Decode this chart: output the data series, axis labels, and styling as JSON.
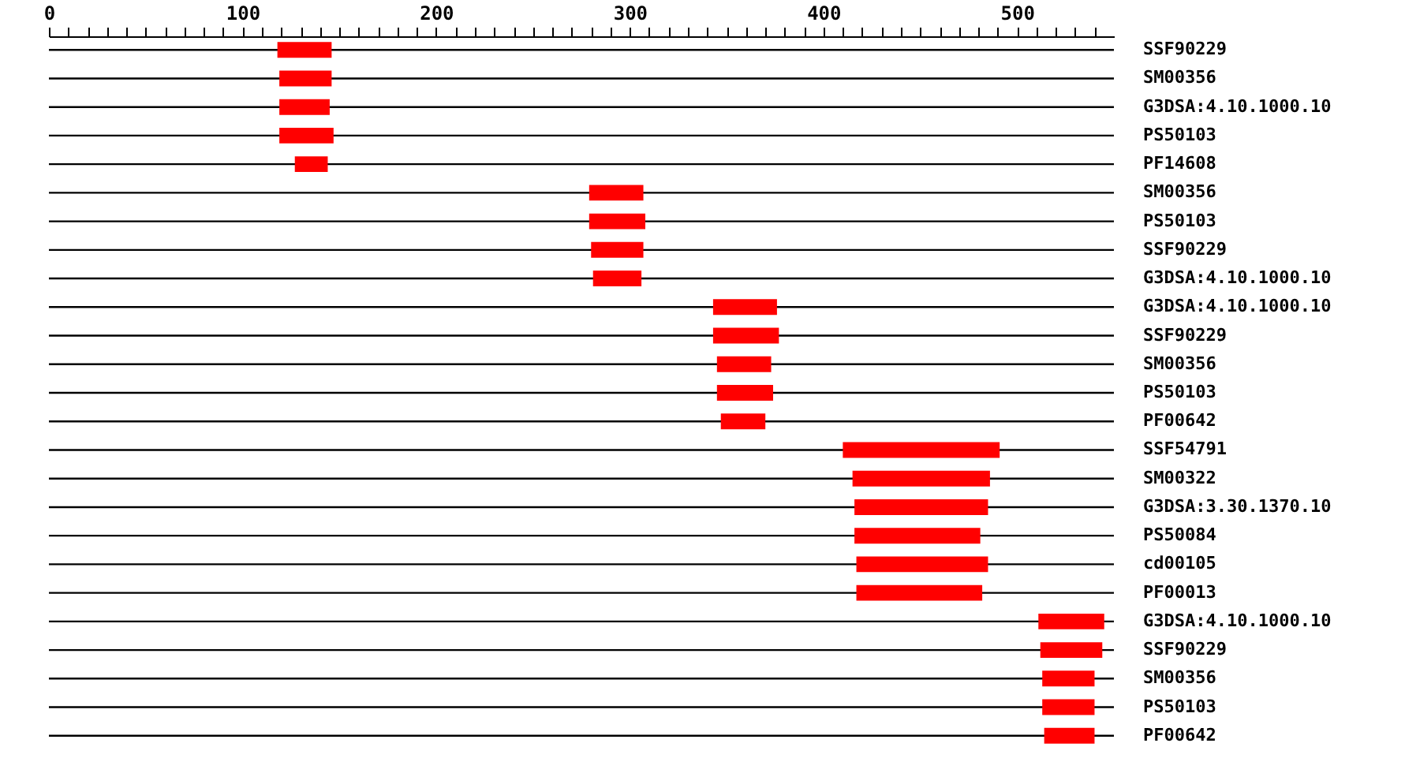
{
  "chart_data": {
    "type": "bar",
    "orientation": "horizontal",
    "categories": [
      "SSF90229",
      "SM00356",
      "G3DSA:4.10.1000.10",
      "PS50103",
      "PF14608",
      "SM00356",
      "PS50103",
      "SSF90229",
      "G3DSA:4.10.1000.10",
      "G3DSA:4.10.1000.10",
      "SSF90229",
      "SM00356",
      "PS50103",
      "PF00642",
      "SSF54791",
      "SM00322",
      "G3DSA:3.30.1370.10",
      "PS50084",
      "cd00105",
      "PF00013",
      "G3DSA:4.10.1000.10",
      "SSF90229",
      "SM00356",
      "PS50103",
      "PF00642"
    ],
    "base": [
      118,
      119,
      119,
      119,
      127,
      279,
      279,
      280,
      281,
      343,
      343,
      345,
      345,
      347,
      410,
      415,
      416,
      416,
      417,
      417,
      511,
      512,
      513,
      513,
      514
    ],
    "values": [
      28,
      27,
      26,
      28,
      17,
      28,
      29,
      27,
      25,
      33,
      34,
      28,
      29,
      23,
      81,
      71,
      69,
      65,
      68,
      65,
      34,
      32,
      27,
      27,
      26
    ],
    "color": "#ff0000",
    "xlim": [
      0,
      550
    ],
    "xticks": [
      0,
      {
        "value": 10,
        "label": null
      },
      {
        "value": 20,
        "label": null
      },
      {
        "value": 30,
        "label": null
      },
      {
        "value": 40,
        "label": null
      },
      {
        "value": 50,
        "label": null
      },
      {
        "value": 60,
        "label": null
      },
      {
        "value": 70,
        "label": null
      },
      {
        "value": 80,
        "label": null
      },
      {
        "value": 90,
        "label": null
      },
      100,
      {
        "value": 110,
        "label": null
      },
      {
        "value": 120,
        "label": null
      },
      {
        "value": 130,
        "label": null
      },
      {
        "value": 140,
        "label": null
      },
      {
        "value": 150,
        "label": null
      },
      {
        "value": 160,
        "label": null
      },
      {
        "value": 170,
        "label": null
      },
      {
        "value": 180,
        "label": null
      },
      {
        "value": 190,
        "label": null
      },
      200,
      {
        "value": 210,
        "label": null
      },
      {
        "value": 220,
        "label": null
      },
      {
        "value": 230,
        "label": null
      },
      {
        "value": 240,
        "label": null
      },
      {
        "value": 250,
        "label": null
      },
      {
        "value": 260,
        "label": null
      },
      {
        "value": 270,
        "label": null
      },
      {
        "value": 280,
        "label": null
      },
      {
        "value": 290,
        "label": null
      },
      300,
      {
        "value": 310,
        "label": null
      },
      {
        "value": 320,
        "label": null
      },
      {
        "value": 330,
        "label": null
      },
      {
        "value": 340,
        "label": null
      },
      {
        "value": 350,
        "label": null
      },
      {
        "value": 360,
        "label": null
      },
      {
        "value": 370,
        "label": null
      },
      {
        "value": 380,
        "label": null
      },
      {
        "value": 390,
        "label": null
      },
      400,
      {
        "value": 410,
        "label": null
      },
      {
        "value": 420,
        "label": null
      },
      {
        "value": 430,
        "label": null
      },
      {
        "value": 440,
        "label": null
      },
      {
        "value": 450,
        "label": null
      },
      {
        "value": 460,
        "label": null
      },
      {
        "value": 470,
        "label": null
      },
      {
        "value": 480,
        "label": null
      },
      {
        "value": 490,
        "label": null
      },
      500,
      {
        "value": 510,
        "label": null
      },
      {
        "value": 520,
        "label": null
      },
      {
        "value": 530,
        "label": null
      },
      {
        "value": 540,
        "label": null
      }
    ],
    "grid": false
  }
}
